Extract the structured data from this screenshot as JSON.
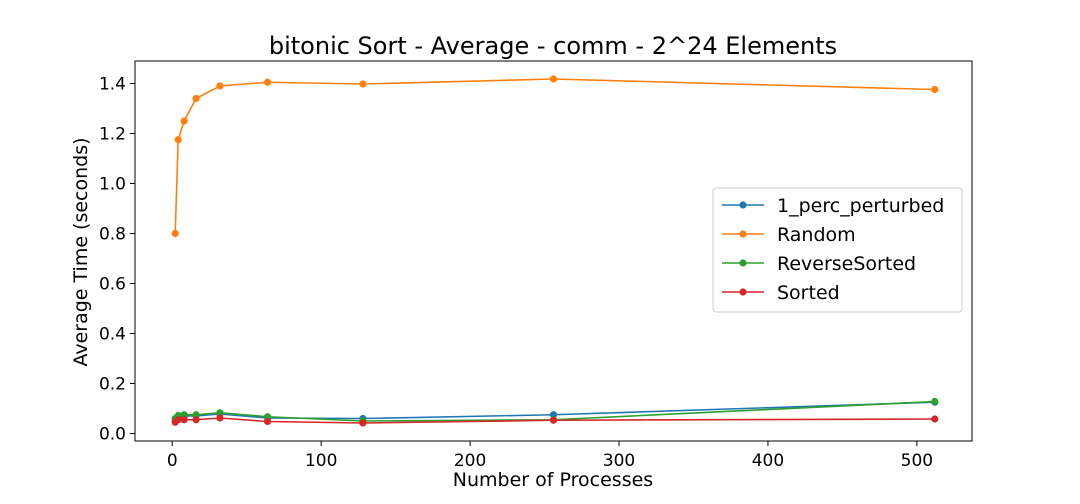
{
  "chart_data": {
    "type": "line",
    "title": "bitonic Sort - Average - comm - 2^24 Elements",
    "xlabel": "Number of Processes",
    "ylabel": "Average Time (seconds)",
    "xlim": [
      -25,
      537
    ],
    "ylim": [
      -0.03,
      1.49
    ],
    "xticks": [
      0,
      100,
      200,
      300,
      400,
      500
    ],
    "yticks": [
      "0.0",
      "0.2",
      "0.4",
      "0.6",
      "0.8",
      "1.0",
      "1.2",
      "1.4"
    ],
    "grid": false,
    "legend_position": "center-right",
    "x": [
      2,
      4,
      8,
      16,
      32,
      64,
      128,
      256,
      512
    ],
    "series": [
      {
        "name": "1_perc_perturbed",
        "color": "#1f77b4",
        "values": [
          0.055,
          0.065,
          0.07,
          0.07,
          0.078,
          0.062,
          0.06,
          0.075,
          0.125
        ]
      },
      {
        "name": "Random",
        "color": "#ff7f0e",
        "values": [
          0.8,
          1.175,
          1.25,
          1.34,
          1.39,
          1.405,
          1.398,
          1.418,
          1.376
        ]
      },
      {
        "name": "ReverseSorted",
        "color": "#2ca02c",
        "values": [
          0.06,
          0.072,
          0.075,
          0.075,
          0.083,
          0.067,
          0.05,
          0.055,
          0.128
        ]
      },
      {
        "name": "Sorted",
        "color": "#d62728",
        "values": [
          0.045,
          0.055,
          0.055,
          0.055,
          0.062,
          0.048,
          0.042,
          0.053,
          0.058
        ]
      }
    ]
  }
}
